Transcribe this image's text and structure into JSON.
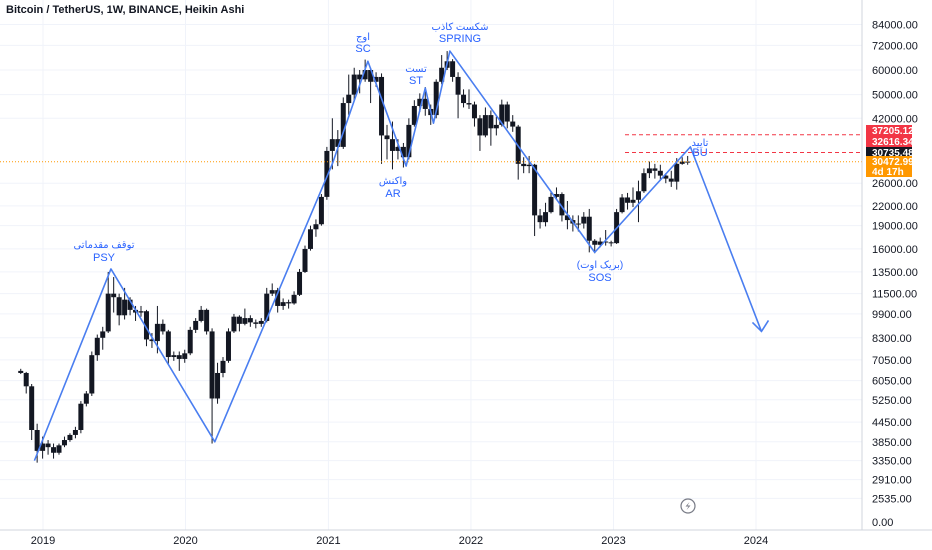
{
  "chart_data": {
    "type": "candlestick",
    "title": "Bitcoin / TetherUS, 1W, BINANCE, Heikin Ashi",
    "y_scale": "log",
    "ylim": [
      0,
      90000
    ],
    "y_ticks": [
      "84000.00",
      "72000.00",
      "60000.00",
      "50000.00",
      "42000.00",
      "26000.00",
      "22000.00",
      "19000.00",
      "16000.00",
      "13500.00",
      "11500.00",
      "9900.00",
      "8300.00",
      "7050.00",
      "6050.00",
      "5250.00",
      "4450.00",
      "3850.00",
      "3350.00",
      "2910.00",
      "2535.00",
      "0.00"
    ],
    "x_ticks": [
      "2019",
      "2020",
      "2021",
      "2022",
      "2023",
      "2024"
    ],
    "price_tags": [
      {
        "label": "37205.12",
        "value": 37205.12,
        "color": "#f23645"
      },
      {
        "label": "32616.34",
        "value": 32616.34,
        "color": "#f23645"
      },
      {
        "label": "30735.48",
        "value": 30735.48,
        "color": "#131722"
      },
      {
        "label": "30472.99",
        "value": 30472.99,
        "color": "#ff9800"
      },
      {
        "label": "4d 17h",
        "color": "#ff9800"
      }
    ],
    "annotations": [
      {
        "fa": "توقف مقدماتی",
        "en": "PSY"
      },
      {
        "fa": "اوج",
        "en": "SC"
      },
      {
        "fa": "واکنش",
        "en": "AR"
      },
      {
        "fa": "تست",
        "en": "ST"
      },
      {
        "fa": "شکست کاذب",
        "en": "SPRING"
      },
      {
        "fa": "(بریک اوت)",
        "en": "SOS"
      },
      {
        "fa": "تایید",
        "en": "BU"
      }
    ],
    "path_points": [
      {
        "date": "2018-12-10",
        "value": 3350
      },
      {
        "date": "2019-06-24",
        "value": 13800
      },
      {
        "date": "2020-03-16",
        "value": 3850
      },
      {
        "date": "2021-01-11",
        "value": 30000
      },
      {
        "date": "2021-04-12",
        "value": 64000
      },
      {
        "date": "2021-07-19",
        "value": 29500
      },
      {
        "date": "2021-09-06",
        "value": 52500
      },
      {
        "date": "2021-09-27",
        "value": 40500
      },
      {
        "date": "2021-11-08",
        "value": 69000
      },
      {
        "date": "2022-11-14",
        "value": 15600
      },
      {
        "date": "2023-07-17",
        "value": 34000
      },
      {
        "date": "2024-01-15",
        "value": 8700
      }
    ],
    "arrow_head_at": {
      "date": "2024-01-15",
      "value": 8700
    },
    "candles": [
      [
        "2018-11-05",
        6500,
        6600,
        6350,
        6400
      ],
      [
        "2018-11-19",
        6400,
        6450,
        5500,
        5800
      ],
      [
        "2018-12-03",
        5800,
        5900,
        3900,
        4200
      ],
      [
        "2018-12-17",
        4200,
        4400,
        3300,
        3600
      ],
      [
        "2018-12-31",
        3600,
        4000,
        3400,
        3800
      ],
      [
        "2019-01-14",
        3800,
        3900,
        3500,
        3700
      ],
      [
        "2019-01-28",
        3700,
        3800,
        3400,
        3550
      ],
      [
        "2019-02-11",
        3550,
        3800,
        3500,
        3750
      ],
      [
        "2019-02-25",
        3750,
        4000,
        3700,
        3900
      ],
      [
        "2019-03-11",
        3900,
        4100,
        3850,
        4050
      ],
      [
        "2019-03-25",
        4050,
        4300,
        3950,
        4200
      ],
      [
        "2019-04-08",
        4200,
        5200,
        4100,
        5100
      ],
      [
        "2019-04-22",
        5100,
        5600,
        5000,
        5500
      ],
      [
        "2019-05-06",
        5500,
        7500,
        5400,
        7300
      ],
      [
        "2019-05-20",
        7300,
        8500,
        7000,
        8300
      ],
      [
        "2019-06-03",
        8300,
        9000,
        7600,
        8700
      ],
      [
        "2019-06-17",
        8700,
        13500,
        8600,
        11500
      ],
      [
        "2019-07-01",
        11500,
        13000,
        10000,
        11200
      ],
      [
        "2019-07-15",
        11200,
        11500,
        9100,
        9800
      ],
      [
        "2019-07-29",
        9800,
        12000,
        9500,
        11000
      ],
      [
        "2019-08-12",
        11000,
        11200,
        9800,
        10200
      ],
      [
        "2019-08-26",
        10200,
        10500,
        9400,
        10000
      ],
      [
        "2019-09-09",
        10000,
        10500,
        9700,
        10100
      ],
      [
        "2019-09-23",
        10100,
        10200,
        7800,
        8200
      ],
      [
        "2019-10-07",
        8200,
        8600,
        7700,
        8100
      ],
      [
        "2019-10-21",
        8100,
        10500,
        7400,
        9200
      ],
      [
        "2019-11-04",
        9200,
        9500,
        8500,
        8700
      ],
      [
        "2019-11-18",
        8700,
        8800,
        6800,
        7200
      ],
      [
        "2019-12-02",
        7200,
        7500,
        7000,
        7300
      ],
      [
        "2019-12-16",
        7300,
        7500,
        6500,
        7100
      ],
      [
        "2019-12-30",
        7100,
        7600,
        6900,
        7400
      ],
      [
        "2020-01-13",
        7400,
        9000,
        7300,
        8800
      ],
      [
        "2020-01-27",
        8800,
        9600,
        8600,
        9400
      ],
      [
        "2020-02-10",
        9400,
        10500,
        9300,
        10200
      ],
      [
        "2020-02-24",
        10200,
        10300,
        8500,
        8700
      ],
      [
        "2020-03-09",
        8700,
        8900,
        3800,
        5300
      ],
      [
        "2020-03-23",
        5300,
        6900,
        5100,
        6400
      ],
      [
        "2020-04-06",
        6400,
        7200,
        6200,
        7000
      ],
      [
        "2020-04-20",
        7000,
        8900,
        6900,
        8700
      ],
      [
        "2020-05-04",
        8700,
        9900,
        8600,
        9700
      ],
      [
        "2020-05-18",
        9700,
        9800,
        8700,
        9200
      ],
      [
        "2020-06-01",
        9200,
        10300,
        9100,
        9600
      ],
      [
        "2020-06-15",
        9600,
        9800,
        9000,
        9300
      ],
      [
        "2020-06-29",
        9300,
        9500,
        8900,
        9200
      ],
      [
        "2020-07-13",
        9200,
        9600,
        9000,
        9400
      ],
      [
        "2020-07-27",
        9400,
        12000,
        9300,
        11500
      ],
      [
        "2020-08-10",
        11500,
        12400,
        11300,
        11800
      ],
      [
        "2020-08-24",
        11800,
        12000,
        10000,
        10500
      ],
      [
        "2020-09-07",
        10500,
        11100,
        10200,
        10800
      ],
      [
        "2020-09-21",
        10800,
        11000,
        10300,
        10700
      ],
      [
        "2020-10-05",
        10700,
        11700,
        10600,
        11400
      ],
      [
        "2020-10-19",
        11400,
        13800,
        11300,
        13500
      ],
      [
        "2020-11-02",
        13500,
        16400,
        13400,
        16000
      ],
      [
        "2020-11-16",
        16000,
        19000,
        15800,
        18500
      ],
      [
        "2020-11-30",
        18500,
        19900,
        17500,
        19200
      ],
      [
        "2020-12-14",
        19200,
        24000,
        19000,
        23500
      ],
      [
        "2020-12-28",
        23500,
        34000,
        23000,
        33000
      ],
      [
        "2021-01-11",
        33000,
        42000,
        28800,
        36000
      ],
      [
        "2021-01-25",
        36000,
        38500,
        29500,
        34000
      ],
      [
        "2021-02-08",
        34000,
        49000,
        33500,
        47000
      ],
      [
        "2021-02-22",
        47000,
        58000,
        43000,
        50000
      ],
      [
        "2021-03-08",
        50000,
        61000,
        48000,
        58000
      ],
      [
        "2021-03-22",
        58000,
        60000,
        50500,
        56000
      ],
      [
        "2021-04-05",
        56000,
        64800,
        55000,
        60000
      ],
      [
        "2021-04-19",
        60000,
        61000,
        47000,
        55000
      ],
      [
        "2021-05-03",
        55000,
        59000,
        53000,
        57000
      ],
      [
        "2021-05-17",
        57000,
        58500,
        30000,
        37000
      ],
      [
        "2021-05-31",
        37000,
        40000,
        31000,
        36000
      ],
      [
        "2021-06-14",
        36000,
        41000,
        28800,
        33000
      ],
      [
        "2021-06-28",
        33000,
        36000,
        31000,
        34000
      ],
      [
        "2021-07-12",
        34000,
        35000,
        29200,
        31500
      ],
      [
        "2021-07-26",
        31500,
        42000,
        31000,
        40000
      ],
      [
        "2021-08-09",
        40000,
        48000,
        39500,
        46000
      ],
      [
        "2021-08-23",
        46000,
        50500,
        44000,
        48500
      ],
      [
        "2021-09-06",
        48500,
        52900,
        42800,
        45000
      ],
      [
        "2021-09-20",
        45000,
        46500,
        40000,
        43000
      ],
      [
        "2021-10-04",
        43000,
        56000,
        42000,
        55000
      ],
      [
        "2021-10-18",
        55000,
        67000,
        54000,
        61000
      ],
      [
        "2021-11-01",
        61000,
        69000,
        60000,
        64000
      ],
      [
        "2021-11-15",
        64000,
        65000,
        55000,
        57000
      ],
      [
        "2021-11-29",
        57000,
        59000,
        42000,
        50000
      ],
      [
        "2021-12-13",
        50000,
        52000,
        45500,
        47000
      ],
      [
        "2021-12-27",
        47000,
        52000,
        45000,
        46500
      ],
      [
        "2022-01-10",
        46500,
        47500,
        39500,
        42000
      ],
      [
        "2022-01-24",
        42000,
        43000,
        33000,
        37000
      ],
      [
        "2022-02-07",
        37000,
        45500,
        36500,
        43000
      ],
      [
        "2022-02-21",
        43000,
        44500,
        34300,
        39000
      ],
      [
        "2022-03-07",
        39000,
        42500,
        37000,
        40000
      ],
      [
        "2022-03-21",
        40000,
        48200,
        39500,
        46500
      ],
      [
        "2022-04-04",
        46500,
        47500,
        39000,
        41000
      ],
      [
        "2022-04-18",
        41000,
        43000,
        38000,
        39500
      ],
      [
        "2022-05-02",
        39500,
        40000,
        26700,
        30000
      ],
      [
        "2022-05-16",
        30000,
        31500,
        28000,
        29500
      ],
      [
        "2022-05-30",
        29500,
        31800,
        28000,
        29800
      ],
      [
        "2022-06-13",
        29800,
        30000,
        17600,
        20500
      ],
      [
        "2022-06-27",
        20500,
        21500,
        18600,
        19500
      ],
      [
        "2022-07-11",
        19500,
        22500,
        18900,
        21000
      ],
      [
        "2022-07-25",
        21000,
        24500,
        20800,
        23500
      ],
      [
        "2022-08-08",
        23500,
        25200,
        23000,
        24000
      ],
      [
        "2022-08-22",
        24000,
        24300,
        19600,
        20500
      ],
      [
        "2022-09-05",
        20500,
        22800,
        18500,
        19800
      ],
      [
        "2022-09-19",
        19800,
        20500,
        18200,
        19300
      ],
      [
        "2022-10-03",
        19300,
        20500,
        18200,
        19300
      ],
      [
        "2022-10-17",
        19300,
        21000,
        18600,
        20300
      ],
      [
        "2022-10-31",
        20300,
        21500,
        15600,
        17000
      ],
      [
        "2022-11-14",
        17000,
        17200,
        15500,
        16500
      ],
      [
        "2022-11-28",
        16500,
        17400,
        16200,
        16900
      ],
      [
        "2022-12-12",
        16900,
        18400,
        16400,
        16800
      ],
      [
        "2022-12-26",
        16800,
        17000,
        16300,
        16700
      ],
      [
        "2023-01-09",
        16700,
        21500,
        16600,
        21000
      ],
      [
        "2023-01-23",
        21000,
        24000,
        20800,
        23400
      ],
      [
        "2023-02-06",
        23400,
        24200,
        21400,
        22500
      ],
      [
        "2023-02-20",
        22500,
        25200,
        21800,
        23000
      ],
      [
        "2023-03-06",
        23000,
        26500,
        19500,
        24500
      ],
      [
        "2023-03-20",
        24500,
        29000,
        24200,
        28000
      ],
      [
        "2023-04-03",
        28000,
        30500,
        27000,
        29000
      ],
      [
        "2023-04-17",
        29000,
        30000,
        26900,
        28500
      ],
      [
        "2023-05-01",
        28500,
        29800,
        26500,
        27500
      ],
      [
        "2023-05-15",
        27500,
        28000,
        26000,
        26900
      ],
      [
        "2023-05-29",
        26900,
        28500,
        25300,
        26300
      ],
      [
        "2023-06-12",
        26300,
        31300,
        24800,
        30000
      ],
      [
        "2023-06-26",
        30000,
        31500,
        29800,
        30500
      ],
      [
        "2023-07-10",
        30500,
        31800,
        29800,
        30300
      ]
    ]
  }
}
